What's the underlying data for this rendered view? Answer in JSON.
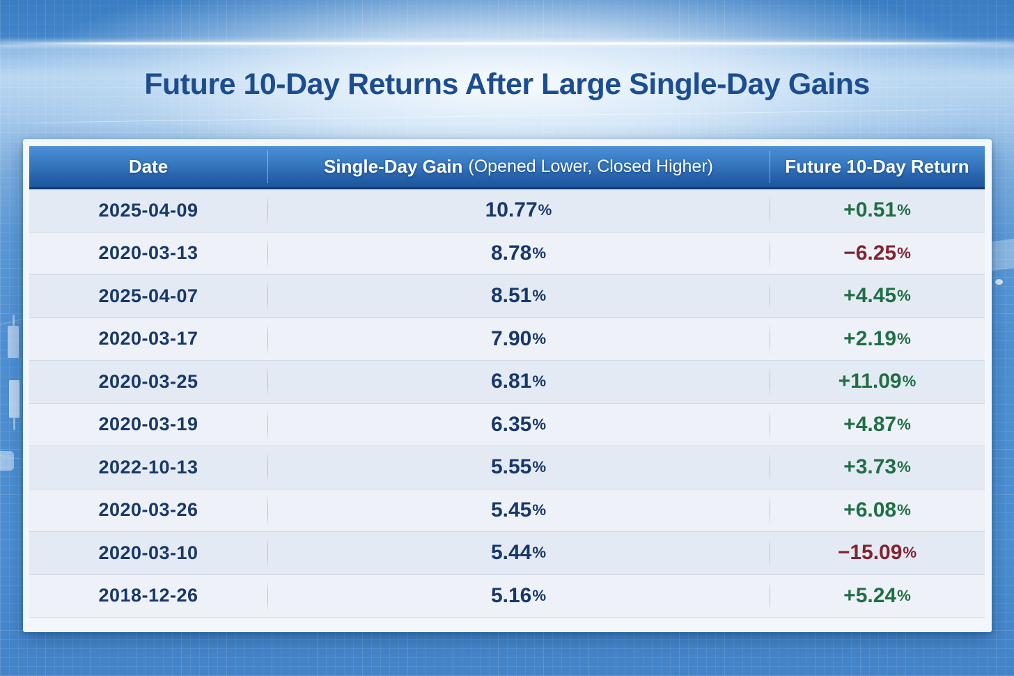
{
  "title": "Future 10-Day Returns After Large Single-Day Gains",
  "table": {
    "unit": "%",
    "columns": {
      "date": "Date",
      "gain": "Single-Day Gain",
      "gain_sub": "(Opened Lower, Closed Higher)",
      "ret": "Future 10-Day Return"
    },
    "rows": [
      {
        "date": "2025-04-09",
        "gain": "10.77",
        "ret": "+0.51",
        "direction": "up"
      },
      {
        "date": "2020-03-13",
        "gain": "8.78",
        "ret": "−6.25",
        "direction": "down"
      },
      {
        "date": "2025-04-07",
        "gain": "8.51",
        "ret": "+4.45",
        "direction": "up"
      },
      {
        "date": "2020-03-17",
        "gain": "7.90",
        "ret": "+2.19",
        "direction": "up"
      },
      {
        "date": "2020-03-25",
        "gain": "6.81",
        "ret": "+11.09",
        "direction": "up"
      },
      {
        "date": "2020-03-19",
        "gain": "6.35",
        "ret": "+4.87",
        "direction": "up"
      },
      {
        "date": "2022-10-13",
        "gain": "5.55",
        "ret": "+3.73",
        "direction": "up"
      },
      {
        "date": "2020-03-26",
        "gain": "5.45",
        "ret": "+6.08",
        "direction": "up"
      },
      {
        "date": "2020-03-10",
        "gain": "5.44",
        "ret": "−15.09",
        "direction": "down"
      },
      {
        "date": "2018-12-26",
        "gain": "5.16",
        "ret": "+5.24",
        "direction": "up"
      }
    ]
  },
  "colors": {
    "positive": "#1f6f45",
    "negative": "#832330",
    "title": "#1c4d92",
    "cell_text": "#17386b",
    "header_text": "#ffffff",
    "header_blue_top": "#4a90d6",
    "header_blue_bottom": "#1d579e",
    "background_blue": "#4c8ed1"
  },
  "chart_data": {
    "type": "table",
    "title": "Future 10-Day Returns After Large Single-Day Gains",
    "columns": [
      "Date",
      "Single-Day Gain (Opened Lower, Closed Higher)",
      "Future 10-Day Return"
    ],
    "units": "percent",
    "rows": [
      [
        "2025-04-09",
        10.77,
        0.51
      ],
      [
        "2020-03-13",
        8.78,
        -6.25
      ],
      [
        "2025-04-07",
        8.51,
        4.45
      ],
      [
        "2020-03-17",
        7.9,
        2.19
      ],
      [
        "2020-03-25",
        6.81,
        11.09
      ],
      [
        "2020-03-19",
        6.35,
        4.87
      ],
      [
        "2022-10-13",
        5.55,
        3.73
      ],
      [
        "2020-03-26",
        5.45,
        6.08
      ],
      [
        "2020-03-10",
        5.44,
        -15.09
      ],
      [
        "2018-12-26",
        5.16,
        5.24
      ]
    ]
  }
}
